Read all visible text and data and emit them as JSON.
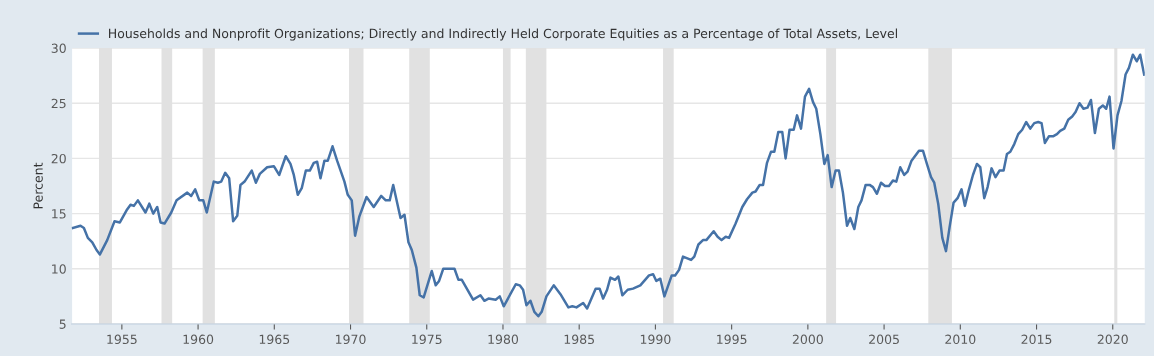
{
  "chart_data": {
    "type": "line",
    "ylabel": "Percent",
    "legend": "top left",
    "grid": "y",
    "line_style": "solid",
    "marker": "none",
    "xlim": [
      1951.7,
      2022.1
    ],
    "xticks": [
      1955,
      1960,
      1965,
      1970,
      1975,
      1980,
      1985,
      1990,
      1995,
      2000,
      2005,
      2010,
      2015,
      2020
    ],
    "ylim": [
      5,
      30
    ],
    "yticks": [
      5,
      10,
      15,
      20,
      25,
      30
    ],
    "bands": [
      {
        "axis": "x",
        "from": 1953.5,
        "to": 1954.35,
        "color": "#e1e1e1"
      },
      {
        "axis": "x",
        "from": 1957.6,
        "to": 1958.3,
        "color": "#e1e1e1"
      },
      {
        "axis": "x",
        "from": 1960.3,
        "to": 1961.1,
        "color": "#e1e1e1"
      },
      {
        "axis": "x",
        "from": 1969.9,
        "to": 1970.85,
        "color": "#e1e1e1"
      },
      {
        "axis": "x",
        "from": 1973.85,
        "to": 1975.2,
        "color": "#e1e1e1"
      },
      {
        "axis": "x",
        "from": 1980.0,
        "to": 1980.5,
        "color": "#e1e1e1"
      },
      {
        "axis": "x",
        "from": 1981.5,
        "to": 1982.85,
        "color": "#e1e1e1"
      },
      {
        "axis": "x",
        "from": 1990.5,
        "to": 1991.2,
        "color": "#e1e1e1"
      },
      {
        "axis": "x",
        "from": 2001.2,
        "to": 2001.85,
        "color": "#e1e1e1"
      },
      {
        "axis": "x",
        "from": 2007.9,
        "to": 2009.45,
        "color": "#e1e1e1"
      },
      {
        "axis": "x",
        "from": 2020.1,
        "to": 2020.3,
        "color": "#e1e1e1"
      }
    ],
    "series": [
      {
        "name": "Households and Nonprofit Organizations; Directly and Indirectly Held Corporate Equities as a Percentage of Total Assets, Level",
        "color": "#4572a7",
        "x": [
          1951.79,
          1952.29,
          1952.51,
          1952.77,
          1953.06,
          1953.34,
          1953.56,
          1954.04,
          1954.52,
          1954.87,
          1955.31,
          1955.57,
          1955.79,
          1956.05,
          1956.55,
          1956.8,
          1957.06,
          1957.32,
          1957.54,
          1957.8,
          1958.24,
          1958.59,
          1959.29,
          1959.55,
          1959.81,
          1960.08,
          1960.34,
          1960.57,
          1961.03,
          1961.3,
          1961.52,
          1961.78,
          1962.04,
          1962.3,
          1962.57,
          1962.78,
          1963.05,
          1963.52,
          1963.79,
          1964.05,
          1964.53,
          1964.97,
          1965.32,
          1965.75,
          1966.06,
          1966.28,
          1966.54,
          1966.8,
          1967.07,
          1967.33,
          1967.59,
          1967.81,
          1968.03,
          1968.29,
          1968.51,
          1968.82,
          1969.12,
          1969.6,
          1969.82,
          1970.08,
          1970.3,
          1970.57,
          1971.05,
          1971.52,
          1972.01,
          1972.31,
          1972.57,
          1972.8,
          1973.28,
          1973.54,
          1973.8,
          1974.02,
          1974.32,
          1974.54,
          1974.8,
          1975.33,
          1975.59,
          1975.81,
          1976.08,
          1976.82,
          1977.08,
          1977.3,
          1978.04,
          1978.52,
          1978.78,
          1979.05,
          1979.52,
          1979.79,
          1980.05,
          1980.84,
          1981.1,
          1981.32,
          1981.54,
          1981.8,
          1982.06,
          1982.32,
          1982.54,
          1982.85,
          1983.33,
          1983.77,
          1984.29,
          1984.55,
          1984.82,
          1985.26,
          1985.52,
          1986.08,
          1986.34,
          1986.57,
          1986.83,
          1987.05,
          1987.35,
          1987.57,
          1987.83,
          1988.18,
          1988.53,
          1989.01,
          1989.58,
          1989.85,
          1990.06,
          1990.32,
          1990.59,
          1991.07,
          1991.29,
          1991.55,
          1991.81,
          1992.34,
          1992.55,
          1992.82,
          1993.12,
          1993.34,
          1993.82,
          1994.08,
          1994.34,
          1994.61,
          1994.83,
          1995.26,
          1995.7,
          1996.01,
          1996.36,
          1996.57,
          1996.84,
          1997.06,
          1997.32,
          1997.58,
          1997.8,
          1998.06,
          1998.32,
          1998.54,
          1998.8,
          1999.07,
          1999.29,
          1999.55,
          1999.81,
          2000.08,
          2000.34,
          2000.55,
          2000.82,
          2001.08,
          2001.3,
          2001.56,
          2001.82,
          2002.04,
          2002.3,
          2002.57,
          2002.78,
          2003.05,
          2003.31,
          2003.52,
          2003.79,
          2004.05,
          2004.27,
          2004.53,
          2004.8,
          2005.06,
          2005.32,
          2005.58,
          2005.8,
          2006.06,
          2006.32,
          2006.54,
          2006.8,
          2007.29,
          2007.55,
          2007.81,
          2008.08,
          2008.29,
          2008.55,
          2008.82,
          2009.06,
          2009.3,
          2009.56,
          2009.82,
          2010.08,
          2010.3,
          2010.57,
          2010.83,
          2011.09,
          2011.31,
          2011.57,
          2011.79,
          2012.05,
          2012.31,
          2012.57,
          2012.84,
          2013.06,
          2013.28,
          2013.54,
          2013.8,
          2014.06,
          2014.32,
          2014.59,
          2014.85,
          2015.11,
          2015.33,
          2015.55,
          2015.81,
          2016.08,
          2016.34,
          2016.55,
          2016.82,
          2017.08,
          2017.34,
          2017.56,
          2017.82,
          2018.08,
          2018.34,
          2018.57,
          2018.83,
          2019.09,
          2019.35,
          2019.57,
          2019.79,
          2020.05,
          2020.31,
          2020.57,
          2020.84,
          2021.06,
          2021.32,
          2021.58,
          2021.8,
          2022.06
        ],
        "values": [
          13.7,
          13.9,
          13.7,
          12.8,
          12.4,
          11.7,
          11.3,
          12.6,
          14.3,
          14.2,
          15.3,
          15.8,
          15.7,
          16.2,
          15.1,
          15.9,
          15.0,
          15.6,
          14.2,
          14.1,
          15.1,
          16.2,
          16.9,
          16.6,
          17.2,
          16.2,
          16.2,
          15.1,
          17.9,
          17.8,
          17.9,
          18.7,
          18.2,
          14.3,
          14.8,
          17.6,
          17.9,
          18.9,
          17.8,
          18.6,
          19.2,
          19.3,
          18.5,
          20.2,
          19.5,
          18.5,
          16.7,
          17.3,
          18.9,
          18.9,
          19.6,
          19.7,
          18.2,
          19.8,
          19.8,
          21.1,
          19.8,
          17.9,
          16.7,
          16.2,
          13.0,
          14.7,
          16.5,
          15.6,
          16.6,
          16.2,
          16.2,
          17.6,
          14.6,
          14.9,
          12.4,
          11.7,
          10.1,
          7.6,
          7.4,
          9.8,
          8.5,
          8.9,
          10.0,
          10.0,
          9.0,
          9.0,
          7.2,
          7.6,
          7.1,
          7.3,
          7.2,
          7.5,
          6.6,
          8.6,
          8.5,
          8.1,
          6.7,
          7.1,
          6.1,
          5.7,
          6.1,
          7.5,
          8.5,
          7.7,
          6.5,
          6.6,
          6.5,
          6.9,
          6.4,
          8.2,
          8.2,
          7.3,
          8.1,
          9.2,
          9.0,
          9.3,
          7.6,
          8.1,
          8.2,
          8.5,
          9.4,
          9.5,
          8.9,
          9.1,
          7.5,
          9.4,
          9.4,
          9.9,
          11.1,
          10.8,
          11.1,
          12.2,
          12.6,
          12.6,
          13.4,
          12.9,
          12.6,
          12.9,
          12.8,
          14.1,
          15.6,
          16.3,
          16.9,
          17.0,
          17.6,
          17.6,
          19.6,
          20.6,
          20.6,
          22.4,
          22.4,
          20.0,
          22.6,
          22.6,
          23.9,
          22.7,
          25.6,
          26.3,
          25.1,
          24.5,
          22.2,
          19.5,
          20.3,
          17.4,
          18.9,
          18.9,
          16.9,
          13.9,
          14.6,
          13.6,
          15.6,
          16.2,
          17.6,
          17.6,
          17.4,
          16.8,
          17.8,
          17.5,
          17.5,
          18.0,
          17.9,
          19.2,
          18.5,
          18.8,
          19.8,
          20.7,
          20.7,
          19.5,
          18.3,
          17.8,
          15.9,
          12.8,
          11.6,
          13.8,
          16.0,
          16.4,
          17.2,
          15.7,
          17.2,
          18.5,
          19.5,
          19.2,
          16.4,
          17.4,
          19.1,
          18.3,
          18.9,
          18.9,
          20.4,
          20.6,
          21.3,
          22.2,
          22.6,
          23.3,
          22.7,
          23.2,
          23.3,
          23.2,
          21.4,
          22.0,
          22.0,
          22.2,
          22.5,
          22.7,
          23.5,
          23.8,
          24.2,
          25.0,
          24.5,
          24.6,
          25.3,
          22.3,
          24.5,
          24.8,
          24.5,
          25.6,
          20.9,
          23.9,
          25.2,
          27.6,
          28.2,
          29.4,
          28.8,
          29.4,
          27.6
        ]
      }
    ]
  }
}
